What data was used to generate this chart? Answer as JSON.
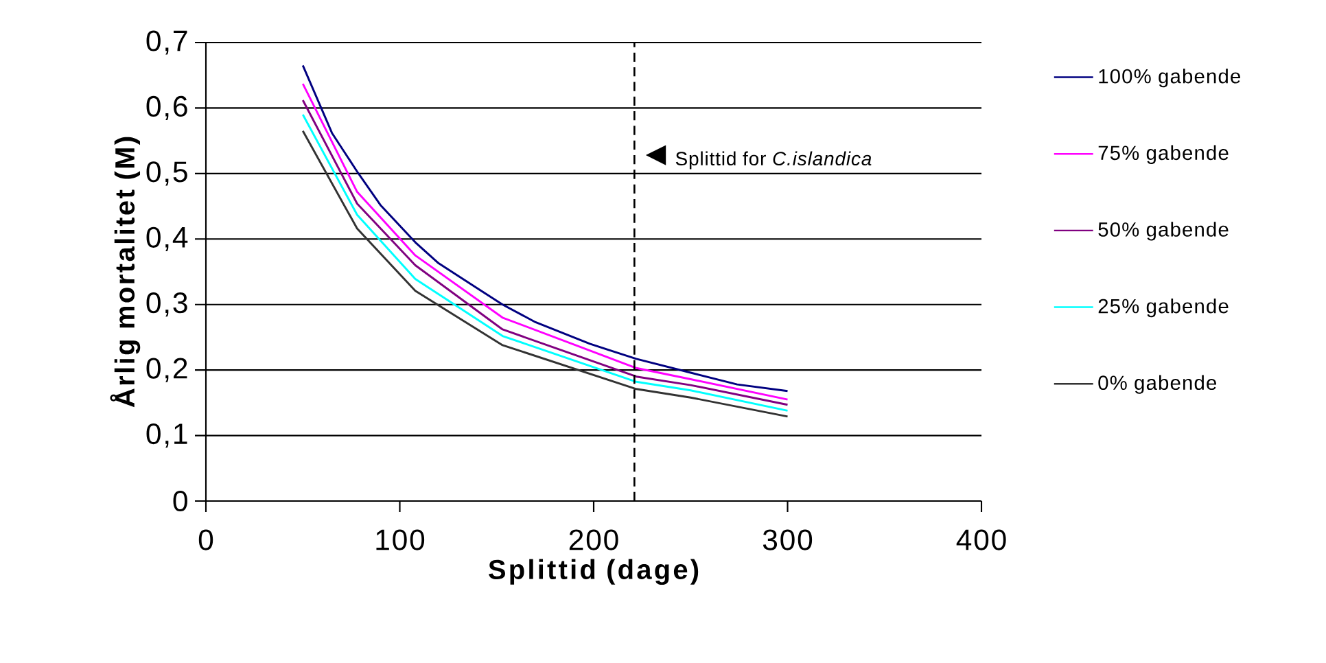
{
  "chart_data": {
    "type": "line",
    "xlabel": "Splittid (dage)",
    "ylabel": "Årlig mortalitet (M)",
    "xlim": [
      0,
      400
    ],
    "xticks": [
      0,
      100,
      200,
      300,
      400
    ],
    "ylim": [
      0,
      0.7
    ],
    "yticks": [
      0,
      {
        "value": 0.1,
        "label": "0,1"
      },
      {
        "value": 0.2,
        "label": "0,2"
      },
      {
        "value": 0.3,
        "label": "0,3"
      },
      {
        "value": 0.4,
        "label": "0,4"
      },
      {
        "value": 0.5,
        "label": "0,5"
      },
      {
        "value": 0.6,
        "label": "0,6"
      },
      {
        "value": 0.7,
        "label": "0,7"
      }
    ],
    "grid": "y",
    "legend": "right",
    "marker": "none",
    "line_style": "solid",
    "ref_lines": [
      {
        "axis": "x",
        "value": 221,
        "label": "Splittid for *C.islandica*",
        "color": "#000000",
        "line_style": "dashed"
      }
    ],
    "series": [
      {
        "name": "100% gabende",
        "color": "#000080",
        "x": [
          50,
          65,
          78,
          90,
          108,
          120,
          142,
          153,
          170,
          198,
          222,
          250,
          274,
          300
        ],
        "values": [
          0.665,
          0.562,
          0.503,
          0.452,
          0.395,
          0.363,
          0.321,
          0.3,
          0.273,
          0.24,
          0.217,
          0.196,
          0.178,
          0.168
        ]
      },
      {
        "name": "75% gabende",
        "color": "#ff00ff",
        "x": [
          50,
          78,
          108,
          153,
          222,
          250,
          300
        ],
        "values": [
          0.637,
          0.472,
          0.375,
          0.28,
          0.203,
          0.186,
          0.155
        ]
      },
      {
        "name": "50% gabende",
        "color": "#800080",
        "x": [
          50,
          78,
          108,
          153,
          222,
          250,
          300
        ],
        "values": [
          0.612,
          0.454,
          0.36,
          0.262,
          0.19,
          0.177,
          0.147
        ]
      },
      {
        "name": "25% gabende",
        "color": "#00ffff",
        "x": [
          50,
          78,
          108,
          153,
          222,
          250,
          300
        ],
        "values": [
          0.59,
          0.437,
          0.339,
          0.252,
          0.182,
          0.169,
          0.138
        ]
      },
      {
        "name": "0% gabende",
        "color": "#333333",
        "x": [
          50,
          78,
          108,
          153,
          222,
          250,
          300
        ],
        "values": [
          0.565,
          0.416,
          0.321,
          0.238,
          0.171,
          0.158,
          0.129
        ]
      }
    ]
  }
}
